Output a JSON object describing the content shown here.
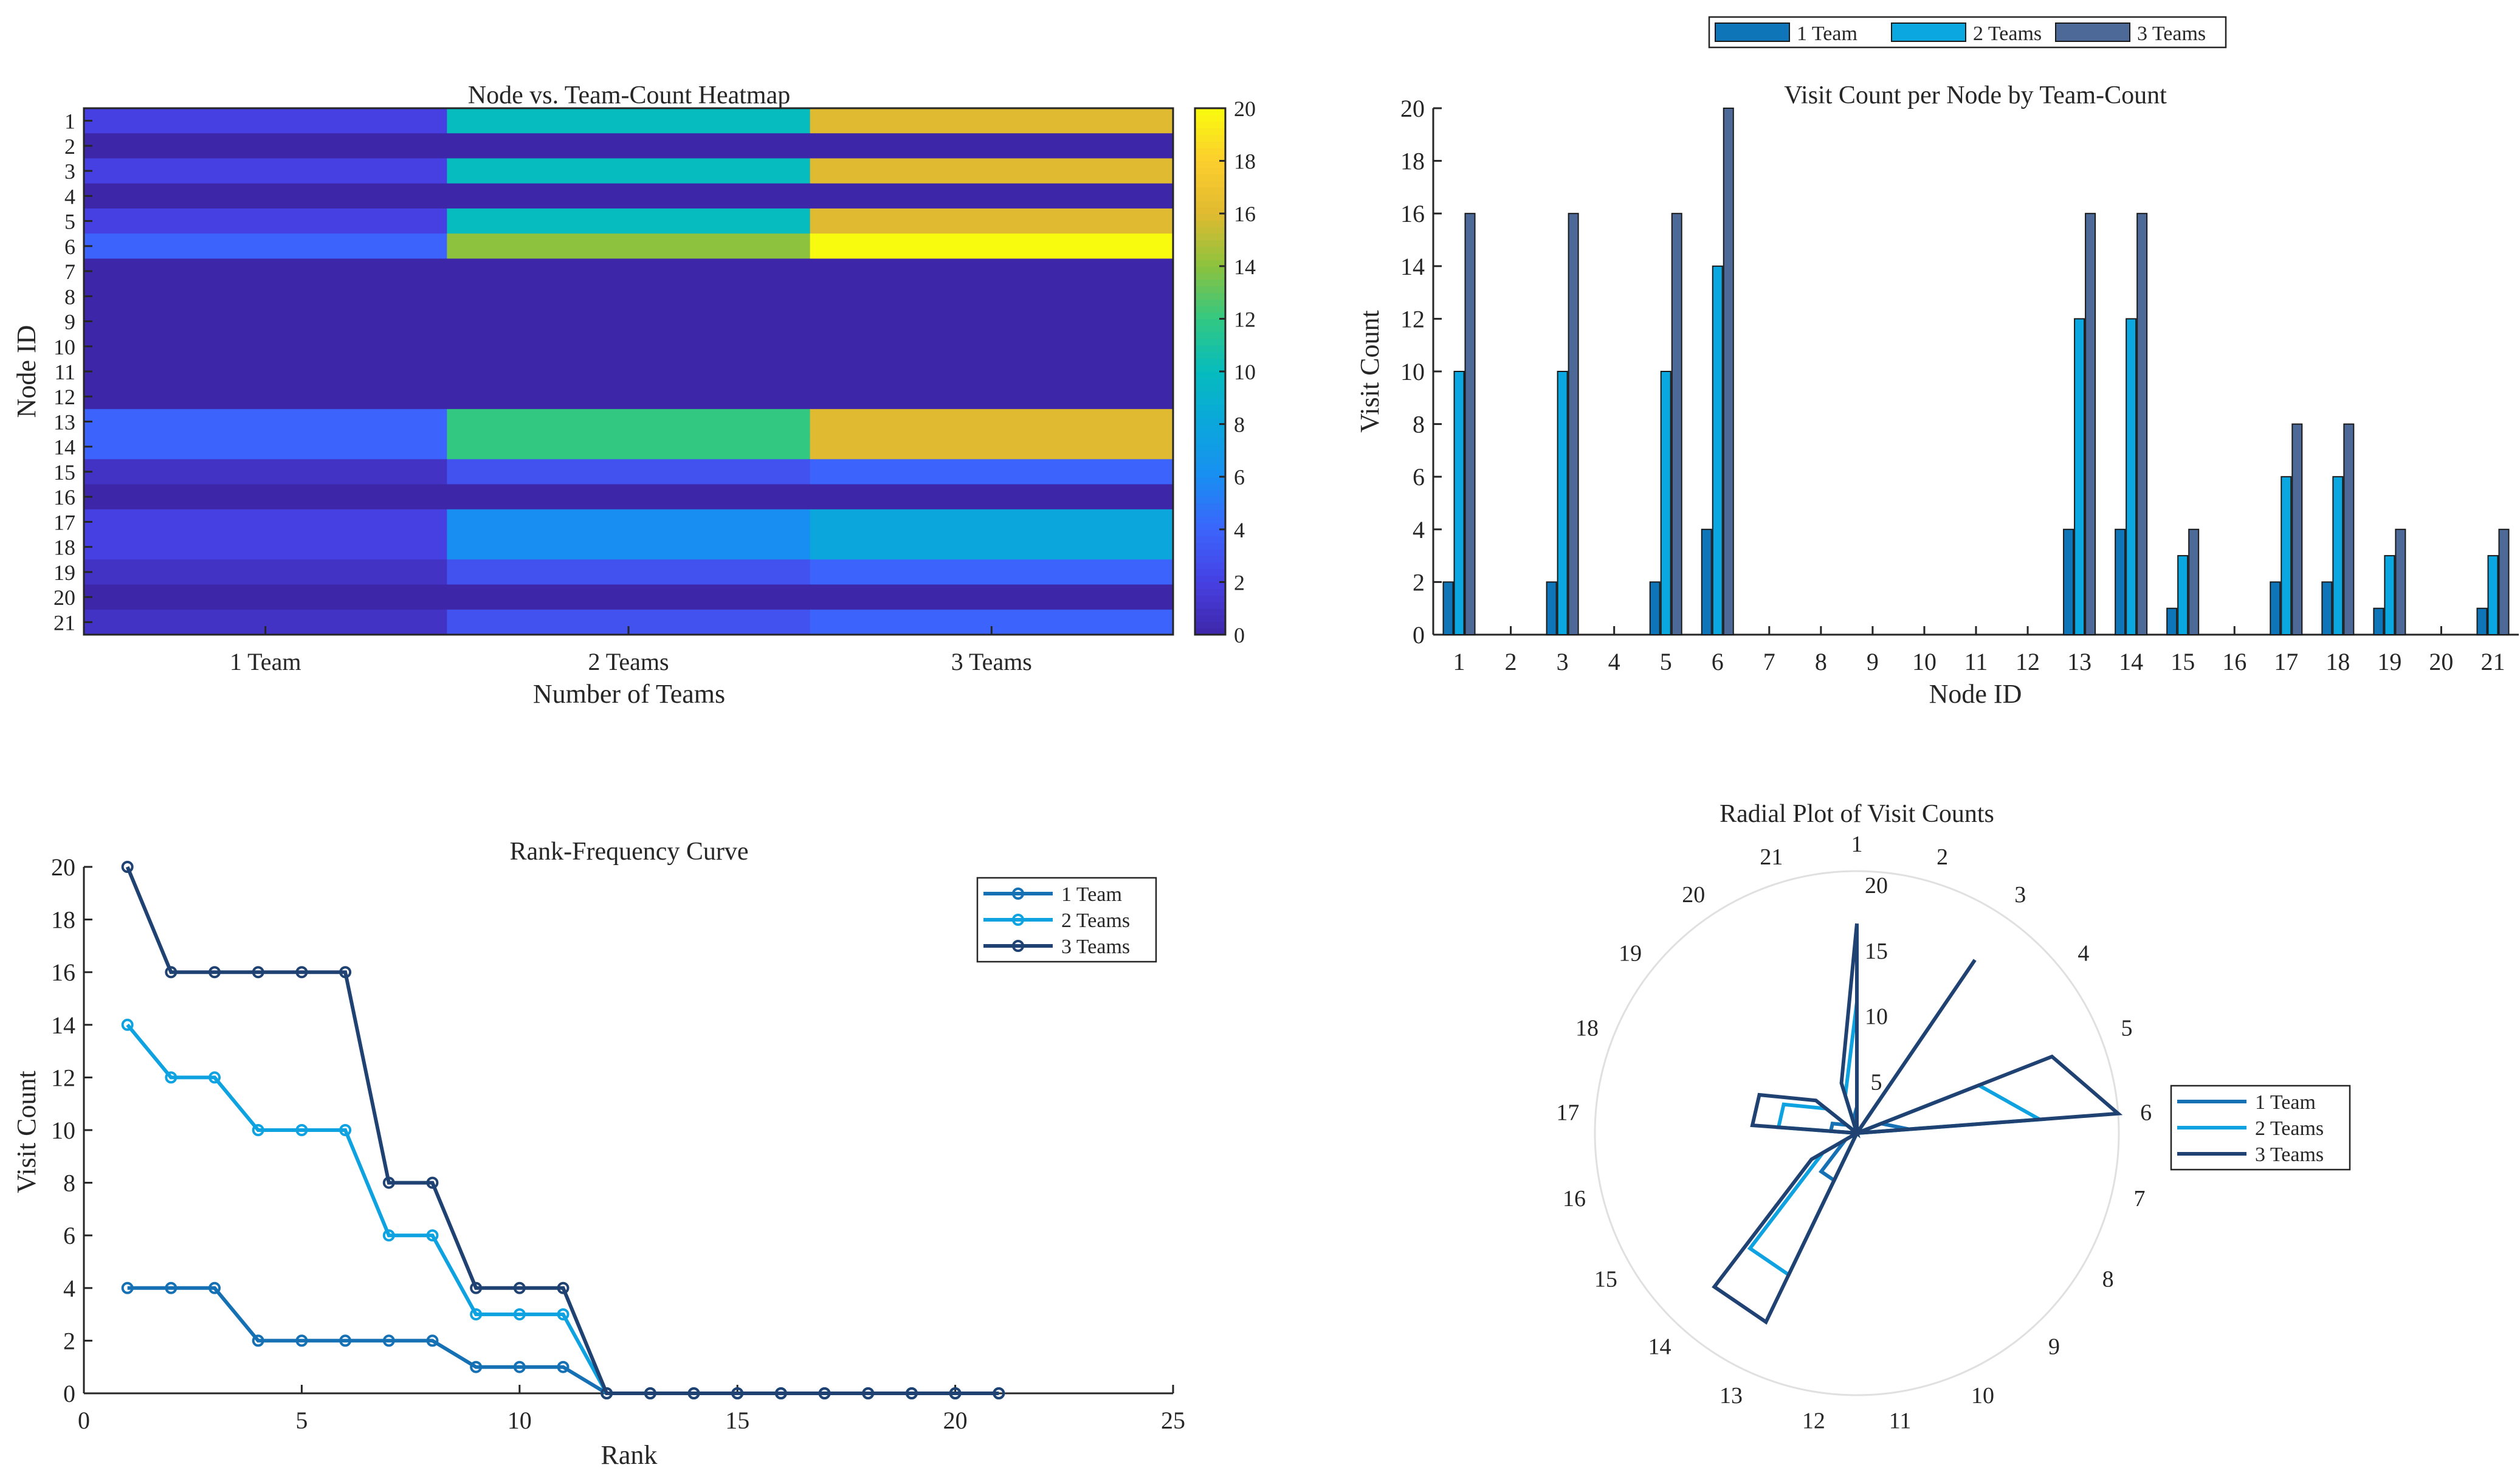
{
  "chart_data": [
    {
      "type": "heatmap",
      "title": "Node vs. Team-Count Heatmap",
      "xlabel": "Number of Teams",
      "ylabel": "Node ID",
      "columns": [
        "1 Team",
        "2 Teams",
        "3 Teams"
      ],
      "rows": [
        "1",
        "2",
        "3",
        "4",
        "5",
        "6",
        "7",
        "8",
        "9",
        "10",
        "11",
        "12",
        "13",
        "14",
        "15",
        "16",
        "17",
        "18",
        "19",
        "20",
        "21"
      ],
      "values": [
        [
          2,
          10,
          16
        ],
        [
          0,
          0,
          0
        ],
        [
          2,
          10,
          16
        ],
        [
          0,
          0,
          0
        ],
        [
          2,
          10,
          16
        ],
        [
          4,
          14,
          20
        ],
        [
          0,
          0,
          0
        ],
        [
          0,
          0,
          0
        ],
        [
          0,
          0,
          0
        ],
        [
          0,
          0,
          0
        ],
        [
          0,
          0,
          0
        ],
        [
          0,
          0,
          0
        ],
        [
          4,
          12,
          16
        ],
        [
          4,
          12,
          16
        ],
        [
          1,
          3,
          4
        ],
        [
          0,
          0,
          0
        ],
        [
          2,
          6,
          8
        ],
        [
          2,
          6,
          8
        ],
        [
          1,
          3,
          4
        ],
        [
          0,
          0,
          0
        ],
        [
          1,
          3,
          4
        ]
      ],
      "colorbar": {
        "range": [
          0,
          20
        ],
        "ticks": [
          "0",
          "2",
          "4",
          "6",
          "8",
          "10",
          "12",
          "14",
          "16",
          "18",
          "20"
        ]
      }
    },
    {
      "type": "bar",
      "title": "Visit Count per Node by Team-Count",
      "xlabel": "Node ID",
      "ylabel": "Visit Count",
      "categories": [
        "1",
        "2",
        "3",
        "4",
        "5",
        "6",
        "7",
        "8",
        "9",
        "10",
        "11",
        "12",
        "13",
        "14",
        "15",
        "16",
        "17",
        "18",
        "19",
        "20",
        "21"
      ],
      "ylim": [
        0,
        20
      ],
      "yticks": [
        "0",
        "2",
        "4",
        "6",
        "8",
        "10",
        "12",
        "14",
        "16",
        "18",
        "20"
      ],
      "series": [
        {
          "name": "1 Team",
          "color": "#0f75b9",
          "values": [
            2,
            0,
            2,
            0,
            2,
            4,
            0,
            0,
            0,
            0,
            0,
            0,
            4,
            4,
            1,
            0,
            2,
            2,
            1,
            0,
            1
          ]
        },
        {
          "name": "2 Teams",
          "color": "#0ba7e0",
          "values": [
            10,
            0,
            10,
            0,
            10,
            14,
            0,
            0,
            0,
            0,
            0,
            0,
            12,
            12,
            3,
            0,
            6,
            6,
            3,
            0,
            3
          ]
        },
        {
          "name": "3 Teams",
          "color": "#4c6998",
          "values": [
            16,
            0,
            16,
            0,
            16,
            20,
            0,
            0,
            0,
            0,
            0,
            0,
            16,
            16,
            4,
            0,
            8,
            8,
            4,
            0,
            4
          ]
        }
      ],
      "legend": "top-center"
    },
    {
      "type": "line",
      "title": "Rank-Frequency Curve",
      "xlabel": "Rank",
      "ylabel": "Visit Count",
      "x": [
        1,
        2,
        3,
        4,
        5,
        6,
        7,
        8,
        9,
        10,
        11,
        12,
        13,
        14,
        15,
        16,
        17,
        18,
        19,
        20,
        21
      ],
      "xlim": [
        0,
        25
      ],
      "ylim": [
        0,
        20
      ],
      "xticks": [
        "0",
        "5",
        "10",
        "15",
        "20",
        "25"
      ],
      "yticks": [
        "0",
        "2",
        "4",
        "6",
        "8",
        "10",
        "12",
        "14",
        "16",
        "18",
        "20"
      ],
      "series": [
        {
          "name": "1 Team",
          "color": "#1570b4",
          "values": [
            4,
            4,
            4,
            2,
            2,
            2,
            2,
            2,
            1,
            1,
            1,
            0,
            0,
            0,
            0,
            0,
            0,
            0,
            0,
            0,
            0
          ]
        },
        {
          "name": "2 Teams",
          "color": "#0ea3e0",
          "values": [
            14,
            12,
            12,
            10,
            10,
            10,
            6,
            6,
            3,
            3,
            3,
            0,
            0,
            0,
            0,
            0,
            0,
            0,
            0,
            0,
            0
          ]
        },
        {
          "name": "3 Teams",
          "color": "#1f4272",
          "values": [
            20,
            16,
            16,
            16,
            16,
            16,
            8,
            8,
            4,
            4,
            4,
            0,
            0,
            0,
            0,
            0,
            0,
            0,
            0,
            0,
            0
          ]
        }
      ],
      "legend": "top-right"
    },
    {
      "type": "radar",
      "title": "Radial Plot of Visit Counts",
      "categories": [
        "1",
        "2",
        "3",
        "4",
        "5",
        "6",
        "7",
        "8",
        "9",
        "10",
        "11",
        "12",
        "13",
        "14",
        "15",
        "16",
        "17",
        "18",
        "19",
        "20",
        "21"
      ],
      "rlim": [
        0,
        20
      ],
      "rticks": [
        "5",
        "10",
        "15",
        "20"
      ],
      "series": [
        {
          "name": "1 Team",
          "color": "#1570b4",
          "values": [
            2,
            0,
            2,
            0,
            2,
            4,
            0,
            0,
            0,
            0,
            0,
            0,
            4,
            4,
            1,
            0,
            2,
            2,
            1,
            0,
            1
          ]
        },
        {
          "name": "2 Teams",
          "color": "#0ea3e0",
          "values": [
            10,
            0,
            10,
            0,
            10,
            14,
            0,
            0,
            0,
            0,
            0,
            0,
            12,
            12,
            3,
            0,
            6,
            6,
            3,
            0,
            3
          ]
        },
        {
          "name": "3 Teams",
          "color": "#1f4272",
          "values": [
            16,
            0,
            16,
            0,
            16,
            20,
            0,
            0,
            0,
            0,
            0,
            0,
            16,
            16,
            4,
            0,
            8,
            8,
            4,
            0,
            4
          ]
        }
      ],
      "legend": "right"
    }
  ]
}
